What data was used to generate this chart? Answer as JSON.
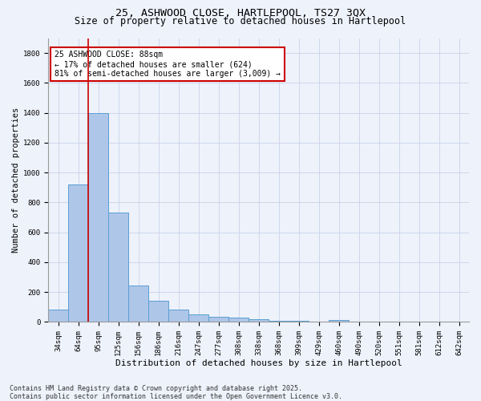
{
  "title": "25, ASHWOOD CLOSE, HARTLEPOOL, TS27 3QX",
  "subtitle": "Size of property relative to detached houses in Hartlepool",
  "xlabel": "Distribution of detached houses by size in Hartlepool",
  "ylabel": "Number of detached properties",
  "categories": [
    "34sqm",
    "64sqm",
    "95sqm",
    "125sqm",
    "156sqm",
    "186sqm",
    "216sqm",
    "247sqm",
    "277sqm",
    "308sqm",
    "338sqm",
    "368sqm",
    "399sqm",
    "429sqm",
    "460sqm",
    "490sqm",
    "520sqm",
    "551sqm",
    "581sqm",
    "612sqm",
    "642sqm"
  ],
  "values": [
    80,
    920,
    1400,
    730,
    245,
    140,
    85,
    50,
    35,
    30,
    20,
    5,
    5,
    0,
    10,
    0,
    0,
    0,
    0,
    0,
    0
  ],
  "bar_color": "#aec6e8",
  "bar_edge_color": "#5a9fd4",
  "vline_color": "#cc0000",
  "vline_x_index": 1.5,
  "annotation_text": "25 ASHWOOD CLOSE: 88sqm\n← 17% of detached houses are smaller (624)\n81% of semi-detached houses are larger (3,009) →",
  "annotation_box_color": "#ffffff",
  "annotation_box_edge": "#cc0000",
  "ylim": [
    0,
    1900
  ],
  "yticks": [
    0,
    200,
    400,
    600,
    800,
    1000,
    1200,
    1400,
    1600,
    1800
  ],
  "bg_color": "#eef2fb",
  "grid_color": "#c8d4e8",
  "footer": "Contains HM Land Registry data © Crown copyright and database right 2025.\nContains public sector information licensed under the Open Government Licence v3.0.",
  "title_fontsize": 9.5,
  "subtitle_fontsize": 8.5,
  "xlabel_fontsize": 8,
  "ylabel_fontsize": 7.5,
  "tick_fontsize": 6.5,
  "ann_fontsize": 7,
  "footer_fontsize": 6
}
